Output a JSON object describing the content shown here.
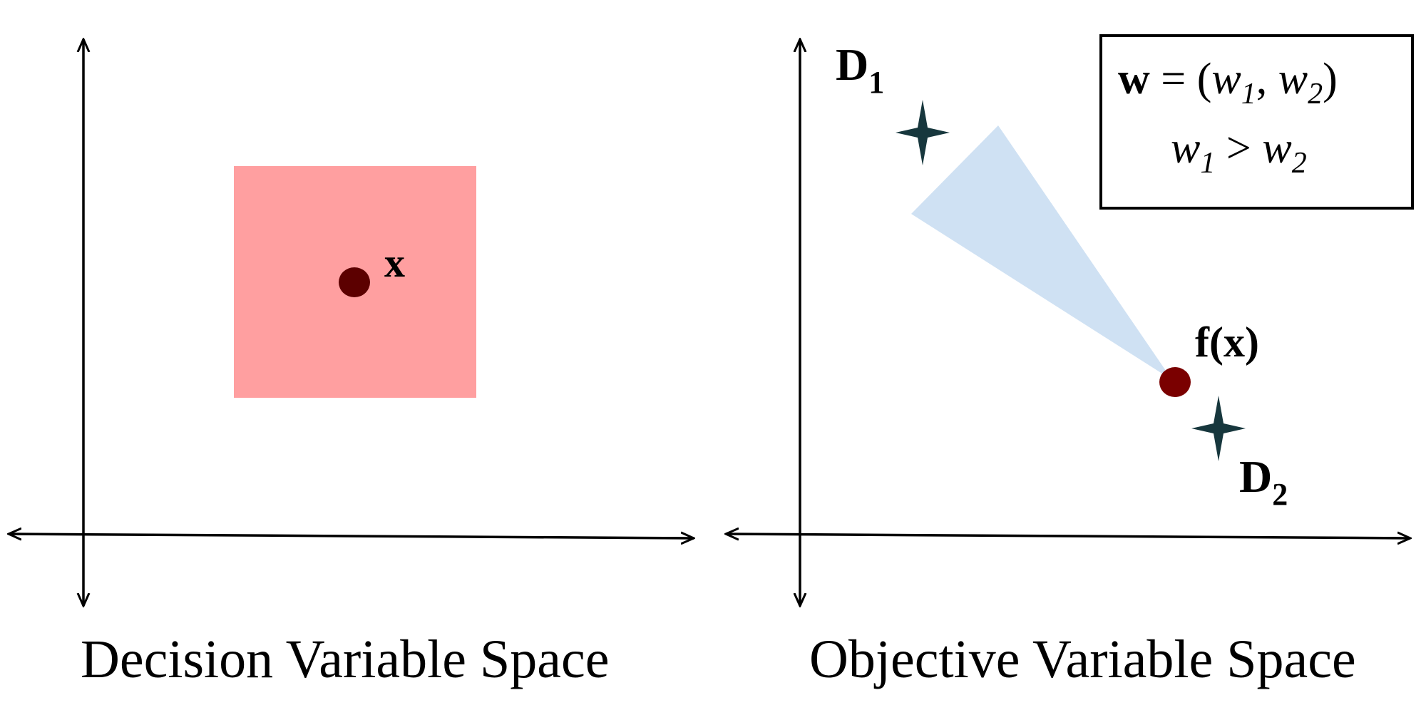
{
  "left_panel": {
    "caption": "Decision Variable Space",
    "point_label": "x",
    "colors": {
      "region": "#ff9fa0",
      "point": "#5c0000",
      "axes": "#000000"
    }
  },
  "right_panel": {
    "caption": "Objective Variable Space",
    "point_label": "f(x)",
    "d1": {
      "letter": "D",
      "sub": "1"
    },
    "d2": {
      "letter": "D",
      "sub": "2"
    },
    "weight_box": {
      "line1": {
        "bold_w": "w",
        "eq": " = (",
        "w1": "w",
        "sub1": "1",
        "comma": ", ",
        "w2": "w",
        "sub2": "2",
        "close": ")"
      },
      "line2": {
        "w1": "w",
        "sub1": "1",
        "op": " > ",
        "w2": "w",
        "sub2": "2"
      }
    },
    "colors": {
      "cone": "#cfe1f3",
      "point": "#7a0000",
      "star": "#17373d",
      "axes": "#000000"
    }
  }
}
